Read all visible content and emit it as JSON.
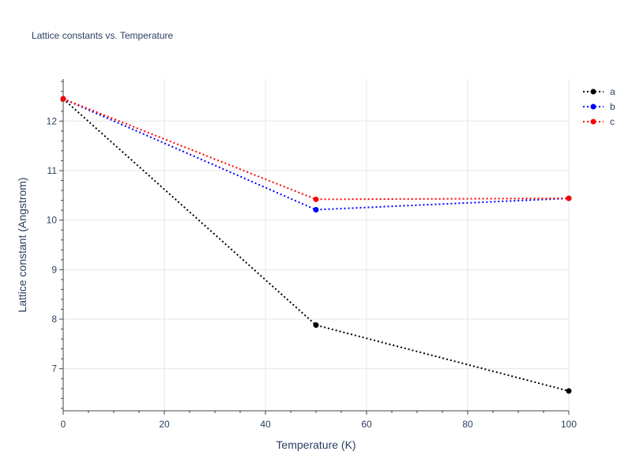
{
  "chart_data": {
    "type": "line",
    "title": "Lattice constants vs. Temperature",
    "xlabel": "Temperature (K)",
    "ylabel": "Lattice constant (Angstrom)",
    "xlim": [
      0,
      100
    ],
    "ylim": [
      6.15,
      12.85
    ],
    "xticks": [
      "0",
      "20",
      "40",
      "60",
      "80",
      "100"
    ],
    "yticks": [
      "7",
      "8",
      "9",
      "10",
      "11",
      "12"
    ],
    "grid": true,
    "legend_position": "top-right",
    "x": [
      0,
      50,
      100
    ],
    "series": [
      {
        "name": "a",
        "color": "#000000",
        "values": [
          12.45,
          7.88,
          6.55
        ]
      },
      {
        "name": "b",
        "color": "#0000ff",
        "values": [
          12.45,
          10.21,
          10.44
        ]
      },
      {
        "name": "c",
        "color": "#ff0000",
        "values": [
          12.45,
          10.42,
          10.44
        ]
      }
    ]
  }
}
